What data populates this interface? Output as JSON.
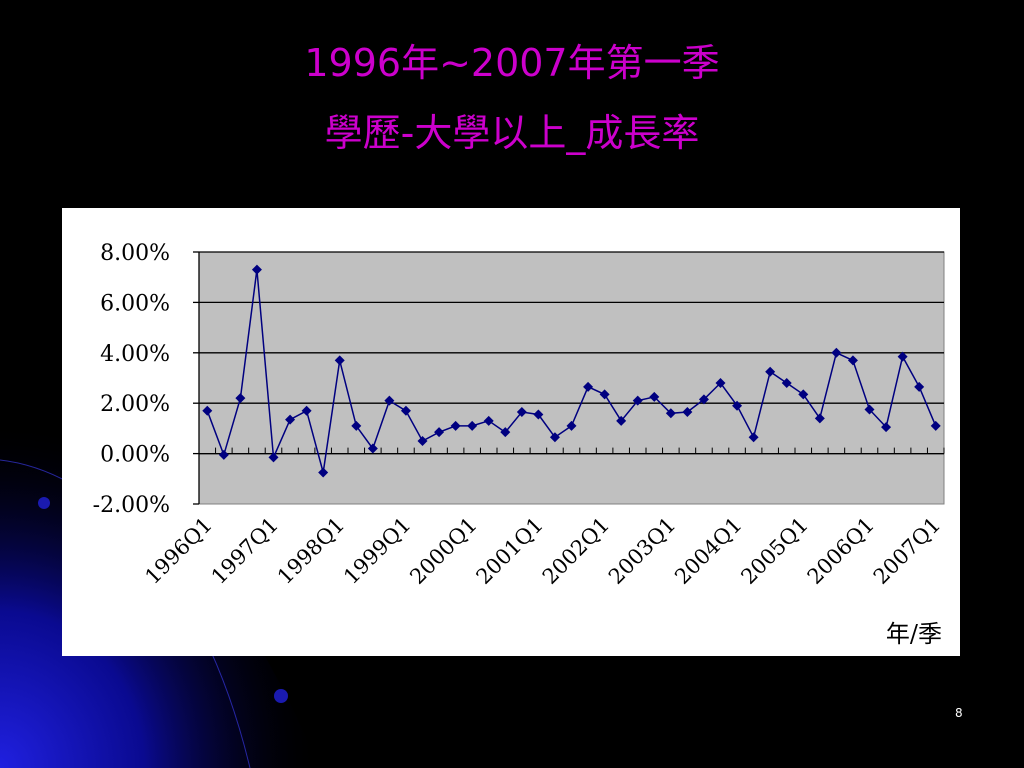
{
  "slide": {
    "title_line1": "1996年~2007年第一季",
    "title_line2": "學歷-大學以上_成長率",
    "page_number": "8",
    "title_color": "#cc00cc",
    "background_color": "#000000"
  },
  "chart_data": {
    "type": "line",
    "title": "",
    "xlabel": "年/季",
    "ylabel": "",
    "ylim": [
      -0.02,
      0.08
    ],
    "y_ticks": [
      -0.02,
      0.0,
      0.02,
      0.04,
      0.06,
      0.08
    ],
    "y_tick_labels": [
      "-2.00%",
      "0.00%",
      "2.00%",
      "4.00%",
      "6.00%",
      "8.00%"
    ],
    "x_tick_labels": [
      "1996Q1",
      "1997Q1",
      "1998Q1",
      "1999Q1",
      "2000Q1",
      "2001Q1",
      "2002Q1",
      "2003Q1",
      "2004Q1",
      "2005Q1",
      "2006Q1",
      "2007Q1"
    ],
    "grid": true,
    "legend": "none",
    "plot_background": "#c0c0c0",
    "series_color": "#000080",
    "series": [
      {
        "values": [
          0.017,
          -0.0005,
          0.022,
          0.073,
          -0.0015,
          0.0135,
          0.017,
          -0.0075,
          0.037,
          0.011,
          0.002,
          0.021,
          0.017,
          0.005,
          0.0085,
          0.011,
          0.011,
          0.013,
          0.0085,
          0.0165,
          0.0155,
          0.0065,
          0.011,
          0.0265,
          0.0235,
          0.013,
          0.021,
          0.0225,
          0.016,
          0.0165,
          0.0215,
          0.028,
          0.019,
          0.0065,
          0.0325,
          0.028,
          0.0235,
          0.014,
          0.04,
          0.037,
          0.0175,
          0.0105,
          0.0385,
          0.0265,
          0.011
        ]
      }
    ]
  }
}
